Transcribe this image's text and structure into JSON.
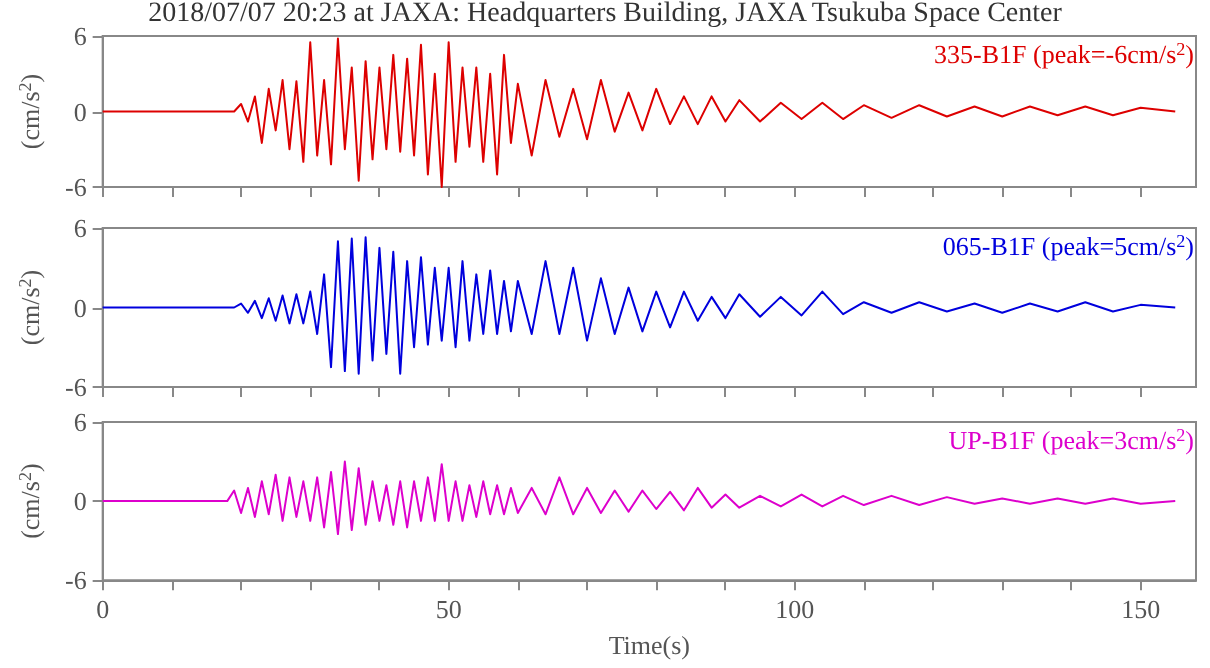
{
  "chart_data": [
    {
      "type": "line",
      "title": "2018/07/07 20:23 at JAXA: Headquarters Building, JAXA Tsukuba Space Center",
      "ylabel": "(cm/s$^{2}$)",
      "xlim": [
        0,
        158
      ],
      "ylim": [
        -6,
        6
      ],
      "yticks": [
        -6,
        0,
        6
      ],
      "xticks": [
        0,
        {
          "value": 10,
          "label": null
        },
        {
          "value": 20,
          "label": null
        },
        {
          "value": 30,
          "label": null
        },
        {
          "value": 40,
          "label": null
        },
        50,
        {
          "value": 60,
          "label": null
        },
        {
          "value": 70,
          "label": null
        },
        {
          "value": 80,
          "label": null
        },
        {
          "value": 90,
          "label": null
        },
        100,
        {
          "value": 110,
          "label": null
        },
        {
          "value": 120,
          "label": null
        },
        {
          "value": 130,
          "label": null
        },
        {
          "value": 140,
          "label": null
        },
        150
      ],
      "tick_labels": "y",
      "grid": false,
      "legend": false,
      "marker": "none",
      "line_style": "solid",
      "series": [
        {
          "name": "335-B1F (peak=-6cm/s$^{2}$)",
          "color": "#dd0000",
          "x": [
            0,
            19,
            20,
            21,
            22,
            23,
            24,
            25,
            26,
            27,
            28,
            29,
            30,
            31,
            32,
            33,
            34,
            35,
            36,
            37,
            38,
            39,
            40,
            41,
            42,
            43,
            44,
            45,
            46,
            47,
            48,
            49,
            50,
            51,
            52,
            53,
            54,
            55,
            56,
            57,
            58,
            59,
            60,
            62,
            64,
            66,
            68,
            70,
            72,
            74,
            76,
            78,
            80,
            82,
            84,
            86,
            88,
            90,
            92,
            95,
            98,
            101,
            104,
            107,
            110,
            114,
            118,
            122,
            126,
            130,
            134,
            138,
            142,
            146,
            150,
            155
          ],
          "values": [
            0,
            0,
            0.6,
            -0.8,
            1.2,
            -2.5,
            1.8,
            -1.5,
            2.5,
            -3,
            2.4,
            -4,
            5.5,
            -3.5,
            2.5,
            -4.2,
            5.8,
            -3,
            3.5,
            -5.5,
            4,
            -3.8,
            3.5,
            -3,
            4.5,
            -3.2,
            4.2,
            -3.5,
            5.3,
            -5,
            3,
            -6,
            5.5,
            -4,
            3.5,
            -2.8,
            3.5,
            -4,
            3,
            -5,
            4.5,
            -2.5,
            2.2,
            -3.5,
            2.5,
            -2,
            1.8,
            -2.2,
            2.5,
            -1.6,
            1.5,
            -1.5,
            1.8,
            -1,
            1.2,
            -1,
            1.2,
            -0.8,
            0.9,
            -0.8,
            0.7,
            -0.6,
            0.7,
            -0.6,
            0.5,
            -0.5,
            0.5,
            -0.4,
            0.4,
            -0.4,
            0.4,
            -0.3,
            0.4,
            -0.3,
            0.3,
            0
          ]
        }
      ]
    },
    {
      "type": "line",
      "ylabel": "(cm/s$^{2}$)",
      "xlim": [
        0,
        158
      ],
      "ylim": [
        -6,
        6
      ],
      "yticks": [
        -6,
        0,
        6
      ],
      "xticks": [
        0,
        {
          "value": 10,
          "label": null
        },
        {
          "value": 20,
          "label": null
        },
        {
          "value": 30,
          "label": null
        },
        {
          "value": 40,
          "label": null
        },
        50,
        {
          "value": 60,
          "label": null
        },
        {
          "value": 70,
          "label": null
        },
        {
          "value": 80,
          "label": null
        },
        {
          "value": 90,
          "label": null
        },
        100,
        {
          "value": 110,
          "label": null
        },
        {
          "value": 120,
          "label": null
        },
        {
          "value": 130,
          "label": null
        },
        {
          "value": 140,
          "label": null
        },
        150
      ],
      "tick_labels": "y",
      "grid": false,
      "legend": false,
      "marker": "none",
      "line_style": "solid",
      "series": [
        {
          "name": "065-B1F (peak=5cm/s$^{2}$)",
          "color": "#0000dd",
          "x": [
            0,
            19,
            20,
            21,
            22,
            23,
            24,
            25,
            26,
            27,
            28,
            29,
            30,
            31,
            32,
            33,
            34,
            35,
            36,
            37,
            38,
            39,
            40,
            41,
            42,
            43,
            44,
            45,
            46,
            47,
            48,
            49,
            50,
            51,
            52,
            53,
            54,
            55,
            56,
            57,
            58,
            59,
            60,
            62,
            64,
            66,
            68,
            70,
            72,
            74,
            76,
            78,
            80,
            82,
            84,
            86,
            88,
            90,
            92,
            95,
            98,
            101,
            104,
            107,
            110,
            114,
            118,
            122,
            126,
            130,
            134,
            138,
            142,
            146,
            150,
            155
          ],
          "values": [
            0,
            0,
            0.3,
            -0.4,
            0.5,
            -0.8,
            0.7,
            -1,
            0.9,
            -1.2,
            1,
            -1.2,
            1.2,
            -2,
            2.5,
            -4.5,
            5,
            -4.8,
            5.2,
            -5,
            5.3,
            -4,
            4.5,
            -3.5,
            4.2,
            -5,
            3.5,
            -3,
            3.8,
            -2.8,
            3,
            -2.5,
            3,
            -3,
            3.5,
            -2.5,
            2.5,
            -2,
            2.8,
            -2,
            2,
            -1.8,
            2,
            -2,
            3.5,
            -2,
            3,
            -2.5,
            2.2,
            -2,
            1.5,
            -1.8,
            1.2,
            -1.5,
            1.2,
            -1,
            0.8,
            -0.8,
            1,
            -0.7,
            0.8,
            -0.6,
            1.2,
            -0.5,
            0.4,
            -0.4,
            0.4,
            -0.3,
            0.3,
            -0.4,
            0.3,
            -0.3,
            0.4,
            -0.3,
            0.2,
            0
          ]
        }
      ]
    },
    {
      "type": "line",
      "xlabel": "Time(s)",
      "ylabel": "(cm/s$^{2}$)",
      "xlim": [
        0,
        158
      ],
      "ylim": [
        -6,
        6
      ],
      "yticks": [
        -6,
        0,
        6
      ],
      "xticks": [
        0,
        {
          "value": 10,
          "label": null
        },
        {
          "value": 20,
          "label": null
        },
        {
          "value": 30,
          "label": null
        },
        {
          "value": 40,
          "label": null
        },
        50,
        {
          "value": 60,
          "label": null
        },
        {
          "value": 70,
          "label": null
        },
        {
          "value": 80,
          "label": null
        },
        {
          "value": 90,
          "label": null
        },
        100,
        {
          "value": 110,
          "label": null
        },
        {
          "value": 120,
          "label": null
        },
        {
          "value": 130,
          "label": null
        },
        {
          "value": 140,
          "label": null
        },
        150
      ],
      "grid": false,
      "legend": false,
      "marker": "none",
      "line_style": "solid",
      "series": [
        {
          "name": "UP-B1F (peak=3cm/s$^{2}$)",
          "color": "#dd00cc",
          "x": [
            0,
            18,
            19,
            20,
            21,
            22,
            23,
            24,
            25,
            26,
            27,
            28,
            29,
            30,
            31,
            32,
            33,
            34,
            35,
            36,
            37,
            38,
            39,
            40,
            41,
            42,
            43,
            44,
            45,
            46,
            47,
            48,
            49,
            50,
            51,
            52,
            53,
            54,
            55,
            56,
            57,
            58,
            59,
            60,
            62,
            64,
            66,
            68,
            70,
            72,
            74,
            76,
            78,
            80,
            82,
            84,
            86,
            88,
            90,
            92,
            95,
            98,
            101,
            104,
            107,
            110,
            114,
            118,
            122,
            126,
            130,
            134,
            138,
            142,
            146,
            150,
            155
          ],
          "values": [
            0,
            0,
            0.8,
            -0.9,
            1,
            -1.2,
            1.5,
            -1,
            2,
            -1.5,
            1.8,
            -1.2,
            1.5,
            -1.5,
            1.8,
            -2,
            2.2,
            -2.5,
            3,
            -2.2,
            2.5,
            -1.8,
            1.5,
            -1.5,
            1.2,
            -1.8,
            1.5,
            -2,
            1.5,
            -1.5,
            1.8,
            -1.5,
            2.8,
            -1.5,
            1.5,
            -1.5,
            1.2,
            -1.2,
            1.5,
            -1,
            1.2,
            -1,
            1,
            -0.9,
            1,
            -1,
            1.8,
            -1,
            1,
            -0.9,
            0.8,
            -0.8,
            0.8,
            -0.6,
            0.7,
            -0.7,
            1,
            -0.5,
            0.5,
            -0.5,
            0.4,
            -0.4,
            0.5,
            -0.4,
            0.4,
            -0.3,
            0.4,
            -0.3,
            0.3,
            -0.2,
            0.2,
            -0.2,
            0.2,
            -0.2,
            0.2,
            -0.2,
            0
          ]
        }
      ]
    }
  ]
}
